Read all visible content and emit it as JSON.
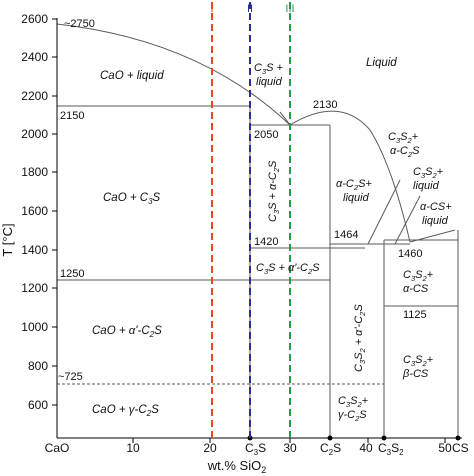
{
  "axes": {
    "x_title": "wt.% SiO",
    "x_title_sub": "2",
    "y_title": "T [°C]",
    "y_ticks": [
      "600",
      "800",
      "1000",
      "1200",
      "1400",
      "1600",
      "1800",
      "2000",
      "2200",
      "2400",
      "2600"
    ],
    "x_ticks": [
      "10",
      "20",
      "30",
      "40",
      "50"
    ],
    "x_origin_label": "CaO",
    "x_compounds": [
      {
        "main": "C",
        "sub": "3",
        "tail": "S"
      },
      {
        "main": "C",
        "sub": "2",
        "tail": "S"
      },
      {
        "main": "C",
        "sub": "3",
        "tail": "S",
        "sub2": "2"
      },
      {
        "main": "CS",
        "sub": "",
        "tail": ""
      }
    ]
  },
  "markers": {
    "i": "I",
    "ii": "II",
    "iii": "III"
  },
  "markers_colors": {
    "i": "#e8471f",
    "ii": "#2b2f8f",
    "iii": "#1f9e50"
  },
  "temperatures": {
    "t2750": "~2750",
    "t2150": "2150",
    "t2130": "2130",
    "t2050": "2050",
    "t1464": "1464",
    "t1420": "1420",
    "t1460": "1460",
    "t1250": "1250",
    "t1125": "1125",
    "t725": "~725"
  },
  "regions": {
    "liquid": "Liquid",
    "cao_liquid": "CaO + liquid",
    "cao_c3s": {
      "a": "CaO + C",
      "sub": "3",
      "b": "S"
    },
    "cao_alpha_prime": {
      "a": "CaO + α'-C",
      "sub": "2",
      "b": "S"
    },
    "cao_gamma": {
      "a": "CaO + γ-C",
      "sub": "2",
      "b": "S"
    },
    "c3s_liquid": {
      "a": "C",
      "sub": "3",
      "b": "S +",
      "c": "liquid"
    },
    "c3s_alpha_c2s": {
      "a": "C",
      "sub1": "3",
      "b": "S + α-C",
      "sub2": "2",
      "c": "S"
    },
    "c3s_alpha_prime_c2s": {
      "a": "C",
      "sub1": "3",
      "b": "S + α'-C",
      "sub2": "2",
      "c": "S"
    },
    "alpha_c2s_liquid": {
      "a": "α-C",
      "sub": "2",
      "b": "S+",
      "c": "liquid"
    },
    "c3s2_alpha_c2s": {
      "a": "C",
      "sub1": "3",
      "b": "S",
      "sub2": "2",
      "c": "+",
      "d": "α-C",
      "sub3": "2",
      "e": "S"
    },
    "c3s2_liquid": {
      "a": "C",
      "sub1": "3",
      "b": "S",
      "sub2": "2",
      "c": "+",
      "d": "liquid"
    },
    "alpha_cs_liquid": {
      "a": "α-CS+",
      "b": "liquid"
    },
    "c3s2_alpha_prime_c2s": {
      "a": "C",
      "sub1": "3",
      "b": "S",
      "sub2": "2",
      "c": " + α'-C",
      "sub3": "2",
      "d": "S"
    },
    "c3s2_alpha_cs": {
      "a": "C",
      "sub1": "3",
      "b": "S",
      "sub2": "2",
      "c": "+",
      "d": "α-CS"
    },
    "c3s2_beta_cs": {
      "a": "C",
      "sub1": "3",
      "b": "S",
      "sub2": "2",
      "c": "+",
      "d": "β-CS"
    },
    "c3s2_gamma_c2s": {
      "a": "C",
      "sub1": "3",
      "b": "S",
      "sub2": "2",
      "c": "+",
      "d": "γ-C",
      "sub3": "2",
      "e": "S"
    }
  }
}
